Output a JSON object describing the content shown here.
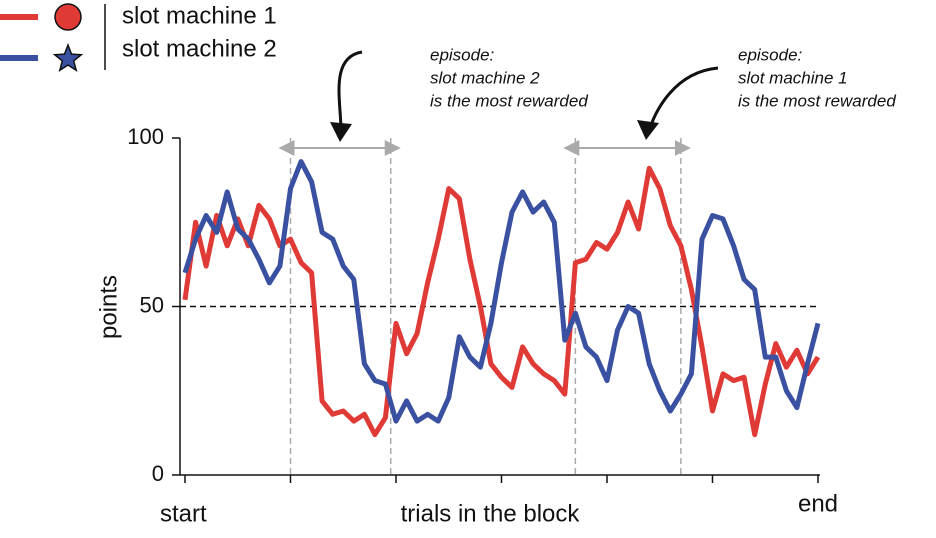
{
  "chart_data": {
    "type": "line",
    "y_label": "points",
    "x_label": "trials in the block",
    "categories": [
      "start",
      null,
      null,
      null,
      null,
      null,
      null,
      null,
      null,
      null,
      null,
      null,
      null,
      null,
      null,
      null,
      null,
      null,
      null,
      null,
      null,
      null,
      null,
      null,
      null,
      null,
      null,
      null,
      null,
      null,
      null,
      null,
      null,
      null,
      null,
      null,
      null,
      null,
      null,
      null,
      null,
      null,
      null,
      null,
      null,
      null,
      null,
      null,
      null,
      null,
      null,
      null,
      null,
      null,
      null,
      null,
      null,
      null,
      null,
      null,
      "end"
    ],
    "xticks": [
      0,
      10,
      20,
      30,
      40,
      50,
      60
    ],
    "ylim": [
      0,
      100
    ],
    "yticks": [
      0,
      50,
      100
    ],
    "hline": 50,
    "series": [
      {
        "name": "slot machine 1",
        "color": "#e03a36",
        "marker": "circle",
        "values": [
          52,
          75,
          62,
          77,
          68,
          76,
          68,
          80,
          76,
          68,
          70,
          63,
          60,
          22,
          18,
          19,
          16,
          18,
          12,
          17,
          45,
          36,
          42,
          57,
          70,
          85,
          82,
          64,
          50,
          33,
          29,
          26,
          38,
          33,
          30,
          28,
          24,
          63,
          64,
          69,
          67,
          72,
          81,
          73,
          91,
          85,
          74,
          68,
          55,
          38,
          19,
          30,
          28,
          29,
          12,
          27,
          39,
          32,
          37,
          30,
          35
        ]
      },
      {
        "name": "slot machine 2",
        "color": "#3a51a2",
        "marker": "star",
        "values": [
          60,
          70,
          77,
          72,
          84,
          73,
          70,
          64,
          57,
          62,
          85,
          93,
          87,
          72,
          70,
          62,
          58,
          33,
          28,
          27,
          16,
          22,
          16,
          18,
          16,
          23,
          41,
          35,
          32,
          45,
          63,
          78,
          84,
          78,
          81,
          75,
          40,
          48,
          38,
          35,
          28,
          43,
          50,
          48,
          33,
          25,
          19,
          24,
          30,
          70,
          77,
          76,
          68,
          58,
          55,
          35,
          35,
          25,
          20,
          33,
          45
        ]
      }
    ],
    "annotations": [
      {
        "text": [
          "episode:",
          "slot machine 2",
          "is the most rewarded"
        ],
        "x_start": 10,
        "x_end": 19.5
      },
      {
        "text": [
          "episode:",
          "slot machine 1",
          "is the most rewarded"
        ],
        "x_start": 37,
        "x_end": 47
      }
    ]
  }
}
